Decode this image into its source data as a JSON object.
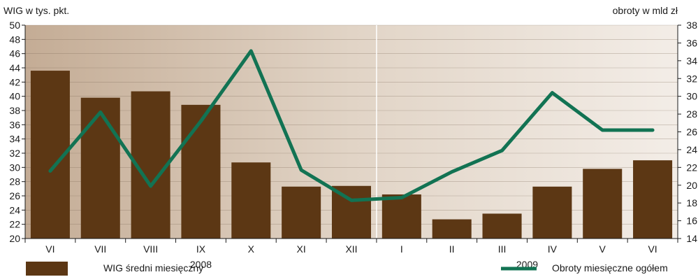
{
  "chart_data": {
    "type": "bar",
    "categories": [
      "VI",
      "VII",
      "VIII",
      "IX",
      "X",
      "XI",
      "XII",
      "I",
      "II",
      "III",
      "IV",
      "V",
      "VI"
    ],
    "years": [
      {
        "label": "2008",
        "from": 0,
        "to": 6
      },
      {
        "label": "2009",
        "from": 7,
        "to": 12
      }
    ],
    "left_axis": {
      "label": "WIG w tys. pkt.",
      "min": 20,
      "max": 50,
      "ticks": [
        20,
        22,
        24,
        26,
        28,
        30,
        32,
        34,
        36,
        38,
        40,
        42,
        44,
        46,
        48,
        50
      ]
    },
    "right_axis": {
      "label": "obroty w mld zł",
      "min": 14,
      "max": 38,
      "ticks": [
        14,
        16,
        18,
        20,
        22,
        24,
        26,
        28,
        30,
        32,
        34,
        36,
        38
      ]
    },
    "series": [
      {
        "name": "WIG średni miesięczny",
        "type": "bar",
        "axis": "left",
        "color": "#5c3714",
        "values": [
          43.6,
          39.8,
          40.7,
          38.8,
          30.7,
          27.3,
          27.4,
          26.2,
          22.7,
          23.5,
          27.3,
          29.8,
          31.0
        ]
      },
      {
        "name": "Obroty miesięczne ogółem",
        "type": "line",
        "axis": "right",
        "color": "#127353",
        "values": [
          21.6,
          28.2,
          19.9,
          27.2,
          35.1,
          21.7,
          18.3,
          18.6,
          21.5,
          23.9,
          30.4,
          26.2,
          26.2
        ]
      }
    ],
    "legend": {
      "placement": "bottom"
    },
    "colors": {
      "bar": "#5c3714",
      "line": "#127353",
      "bg_dark": "#c4ac95",
      "bg_light": "#f3ede7"
    }
  }
}
